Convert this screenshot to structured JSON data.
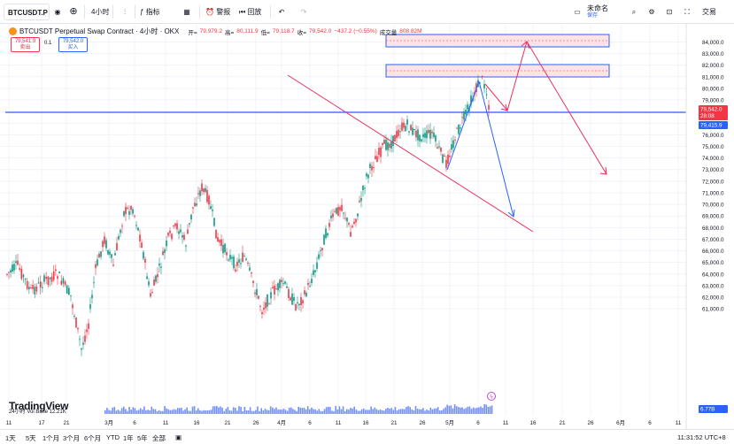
{
  "toolbar": {
    "symbol": "BTCUSDT.P",
    "interval": "4小时",
    "indicators_label": "指标",
    "alert_label": "警报",
    "replay_label": "回放",
    "layout_name": "未命名",
    "layout_status": "保存",
    "trade_label": "交易"
  },
  "legend": {
    "title": "BTCUSDT Perpetual Swap Contract · 4小时 · OKX",
    "open_label": "开=",
    "open": "79,979.2",
    "high_label": "高=",
    "high": "80,111.9",
    "low_label": "低=",
    "low": "79,118.7",
    "close_label": "收=",
    "close": "79,542.0",
    "change": "−437.2 (−0.55%)",
    "volume_label": "成交量",
    "volume": "808.82M",
    "sell_price": "79,541.9",
    "sell_label": "卖出",
    "spread": "0.1",
    "buy_price": "79,542.0",
    "buy_label": "买入"
  },
  "price_axis": {
    "ticks": [
      "84,000.0",
      "83,000.0",
      "82,000.0",
      "81,000.0",
      "80,000.0",
      "79,000.0",
      "78,000.0",
      "77,000.0",
      "76,000.0",
      "75,000.0",
      "74,000.0",
      "73,000.0",
      "72,000.0",
      "71,000.0",
      "70,000.0",
      "69,000.0",
      "68,000.0",
      "67,000.0",
      "66,000.0",
      "65,000.0",
      "64,000.0",
      "63,000.0",
      "62,000.0",
      "61,000.0"
    ],
    "last_price": "79,542.0",
    "countdown": "28:08",
    "line_price": "79,415.9",
    "volume_tag": "6.77B"
  },
  "time_axis": {
    "ticks": [
      "11",
      "17",
      "21",
      "3月",
      "6",
      "11",
      "16",
      "21",
      "26",
      "4月",
      "6",
      "11",
      "16",
      "21",
      "26",
      "5月",
      "6",
      "11",
      "16",
      "21",
      "26",
      "6月",
      "6",
      "11"
    ]
  },
  "volume_title": "24小时 Vol Base 12.21K",
  "logo": "TradingView",
  "bottom_bar": {
    "ranges": [
      "1天",
      "5天",
      "1个月",
      "3个月",
      "6个月",
      "YTD",
      "1年",
      "5年",
      "全部"
    ],
    "clock": "11:31:52 UTC+8"
  },
  "colors": {
    "up": "#089981",
    "down": "#f23645",
    "drawing_red": "#e8315b",
    "drawing_blue": "#2962ff",
    "zone_fill": "#fbe3e6"
  },
  "icons": [
    "plus-icon",
    "bar-chart-icon",
    "indicators-icon",
    "grid-icon",
    "alert-icon",
    "replay-icon",
    "undo-icon",
    "redo-icon",
    "layout-icon",
    "search-icon",
    "settings-icon",
    "camera-icon",
    "fullscreen-icon",
    "calendar-icon",
    "lightning-icon"
  ]
}
